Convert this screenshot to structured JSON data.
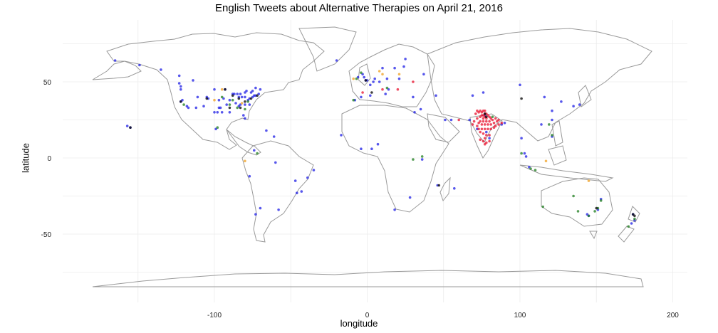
{
  "chart_data": {
    "type": "scatter",
    "title": "English Tweets about Alternative Therapies on April 21, 2016",
    "xlabel": "longitude",
    "ylabel": "latitude",
    "xlim": [
      -180,
      200
    ],
    "ylim": [
      -90,
      85
    ],
    "x_ticks": [
      -100,
      0,
      100,
      200
    ],
    "y_ticks": [
      -50,
      0,
      50
    ],
    "x_tick_labels": [
      "-100",
      "0",
      "100",
      "200"
    ],
    "y_tick_labels": [
      "-50",
      "0",
      "50"
    ],
    "grid": true,
    "series": [
      {
        "color": "#1f1fe6",
        "points": [
          [
            -122,
            47
          ],
          [
            -122,
            45
          ],
          [
            -122,
            37
          ],
          [
            -121,
            38
          ],
          [
            -118,
            34
          ],
          [
            -117,
            33
          ],
          [
            -112,
            33
          ],
          [
            -111,
            40
          ],
          [
            -105,
            40
          ],
          [
            -104,
            39
          ],
          [
            -97,
            33
          ],
          [
            -96,
            33
          ],
          [
            -95,
            30
          ],
          [
            -98,
            30
          ],
          [
            -90,
            30
          ],
          [
            -90,
            38
          ],
          [
            -87,
            42
          ],
          [
            -88,
            42
          ],
          [
            -84,
            34
          ],
          [
            -83,
            42
          ],
          [
            -82,
            40
          ],
          [
            -81,
            28
          ],
          [
            -80,
            26
          ],
          [
            -80,
            35
          ],
          [
            -80,
            40
          ],
          [
            -77,
            39
          ],
          [
            -75,
            40
          ],
          [
            -74,
            41
          ],
          [
            -73,
            41
          ],
          [
            -71,
            42
          ],
          [
            -79,
            44
          ],
          [
            -76,
            43
          ],
          [
            -73,
            46
          ],
          [
            -93,
            45
          ],
          [
            -94,
            39
          ],
          [
            -86,
            36
          ],
          [
            -85,
            42
          ],
          [
            -84,
            40
          ],
          [
            -77,
            35
          ],
          [
            -114,
            51
          ],
          [
            -123,
            49
          ],
          [
            -66,
            18
          ],
          [
            -157,
            21
          ],
          [
            -155,
            20
          ],
          [
            -99,
            19
          ],
          [
            -74,
            5
          ],
          [
            -77,
            -12
          ],
          [
            -70,
            -33
          ],
          [
            -58,
            -34
          ],
          [
            -46,
            -23
          ],
          [
            -43,
            -22
          ],
          [
            -123,
            54
          ],
          [
            -107,
            34
          ],
          [
            -100,
            30
          ],
          [
            -80,
            43
          ],
          [
            -83,
            35
          ],
          [
            -78,
            38
          ],
          [
            -75,
            44
          ],
          [
            -70,
            45
          ],
          [
            -100,
            45
          ],
          [
            -97,
            38
          ],
          [
            -92,
            35
          ],
          [
            -2,
            53
          ],
          [
            -1,
            51
          ],
          [
            0,
            51
          ],
          [
            -3,
            55
          ],
          [
            -6,
            53
          ],
          [
            2,
            48
          ],
          [
            4,
            50
          ],
          [
            5,
            52
          ],
          [
            8,
            50
          ],
          [
            13,
            52
          ],
          [
            10,
            59
          ],
          [
            18,
            59
          ],
          [
            24,
            60
          ],
          [
            21,
            52
          ],
          [
            37,
            55
          ],
          [
            12,
            42
          ],
          [
            14,
            45
          ],
          [
            2,
            41
          ],
          [
            -4,
            40
          ],
          [
            -8,
            38
          ],
          [
            30,
            40
          ],
          [
            35,
            32
          ],
          [
            31,
            30
          ],
          [
            55,
            25
          ],
          [
            51,
            25
          ],
          [
            67,
            25
          ],
          [
            72,
            19
          ],
          [
            77,
            28
          ],
          [
            80,
            13
          ],
          [
            78,
            17
          ],
          [
            88,
            22
          ],
          [
            90,
            23
          ],
          [
            101,
            13
          ],
          [
            104,
            1
          ],
          [
            103,
            3
          ],
          [
            106,
            -6
          ],
          [
            121,
            14
          ],
          [
            121,
            25
          ],
          [
            114,
            22
          ],
          [
            116,
            40
          ],
          [
            121,
            31
          ],
          [
            127,
            37
          ],
          [
            139,
            35
          ],
          [
            135,
            34
          ],
          [
            151,
            -34
          ],
          [
            145,
            -38
          ],
          [
            153,
            -27
          ],
          [
            144,
            -37
          ],
          [
            174,
            -37
          ],
          [
            175,
            -41
          ],
          [
            173,
            -43
          ],
          [
            28,
            -26
          ],
          [
            18,
            -34
          ],
          [
            36,
            -1
          ],
          [
            3,
            6
          ],
          [
            7,
            9
          ],
          [
            -17,
            15
          ],
          [
            -4,
            6
          ],
          [
            46,
            -18
          ],
          [
            57,
            -20
          ],
          [
            -61,
            14
          ],
          [
            -73,
            -37
          ],
          [
            -47,
            -15
          ],
          [
            -39,
            -13
          ],
          [
            -35,
            -8
          ],
          [
            -60,
            -3
          ],
          [
            -20,
            64
          ],
          [
            25,
            65
          ],
          [
            45,
            41
          ],
          [
            69,
            41
          ],
          [
            76,
            43
          ],
          [
            100,
            48
          ],
          [
            -135,
            58
          ],
          [
            -149,
            61
          ],
          [
            -165,
            64
          ]
        ]
      },
      {
        "color": "#e8112d",
        "points": [
          [
            72,
            26
          ],
          [
            74,
            27
          ],
          [
            75,
            28
          ],
          [
            76,
            28
          ],
          [
            77,
            29
          ],
          [
            78,
            29
          ],
          [
            79,
            28
          ],
          [
            80,
            27
          ],
          [
            81,
            26
          ],
          [
            77,
            27
          ],
          [
            78,
            26
          ],
          [
            76,
            26
          ],
          [
            74,
            24
          ],
          [
            73,
            23
          ],
          [
            75,
            22
          ],
          [
            77,
            22
          ],
          [
            79,
            22
          ],
          [
            81,
            22
          ],
          [
            83,
            23
          ],
          [
            85,
            24
          ],
          [
            86,
            25
          ],
          [
            84,
            26
          ],
          [
            82,
            25
          ],
          [
            80,
            24
          ],
          [
            78,
            24
          ],
          [
            76,
            24
          ],
          [
            72,
            21
          ],
          [
            73,
            19
          ],
          [
            75,
            19
          ],
          [
            77,
            19
          ],
          [
            79,
            19
          ],
          [
            81,
            19
          ],
          [
            83,
            20
          ],
          [
            74,
            17
          ],
          [
            76,
            16
          ],
          [
            78,
            15
          ],
          [
            80,
            15
          ],
          [
            77,
            13
          ],
          [
            76,
            11
          ],
          [
            78,
            10
          ],
          [
            80,
            11
          ],
          [
            77,
            9
          ],
          [
            74,
            12
          ],
          [
            88,
            23
          ],
          [
            86,
            22
          ],
          [
            84,
            21
          ],
          [
            72,
            31
          ],
          [
            74,
            31
          ],
          [
            76,
            31
          ],
          [
            77,
            31
          ],
          [
            75,
            30
          ],
          [
            73,
            30
          ],
          [
            71,
            29
          ],
          [
            70,
            24
          ],
          [
            69,
            22
          ],
          [
            30,
            50
          ],
          [
            20,
            45
          ],
          [
            10,
            45
          ],
          [
            -3,
            43
          ],
          [
            60,
            25
          ]
        ]
      },
      {
        "color": "#1e7d1e",
        "points": [
          [
            -120,
            35
          ],
          [
            -90,
            35
          ],
          [
            -85,
            33
          ],
          [
            -95,
            40
          ],
          [
            -88,
            38
          ],
          [
            -78,
            37
          ],
          [
            -80,
            32
          ],
          [
            -98,
            20
          ],
          [
            -72,
            3
          ],
          [
            -7,
            52
          ],
          [
            -4,
            56
          ],
          [
            13,
            46
          ],
          [
            101,
            3
          ],
          [
            107,
            -7
          ],
          [
            110,
            -8
          ],
          [
            119,
            22
          ],
          [
            121,
            15
          ],
          [
            145,
            -38
          ],
          [
            151,
            -33
          ],
          [
            153,
            -28
          ],
          [
            149,
            -35
          ],
          [
            138,
            -35
          ],
          [
            115,
            -32
          ],
          [
            171,
            -45
          ],
          [
            175,
            -40
          ],
          [
            30,
            -1
          ],
          [
            36,
            1
          ],
          [
            -9,
            38
          ],
          [
            82,
            27
          ],
          [
            135,
            -25
          ]
        ]
      },
      {
        "color": "#000000",
        "points": [
          [
            -93,
            45
          ],
          [
            -84,
            39
          ],
          [
            -80,
            37
          ],
          [
            -76,
            39
          ],
          [
            -72,
            41
          ],
          [
            -105,
            39
          ],
          [
            -83,
            33
          ],
          [
            -88,
            41
          ],
          [
            -90,
            33
          ],
          [
            -122,
            37
          ],
          [
            -1,
            51
          ],
          [
            77,
            29
          ],
          [
            78,
            27
          ],
          [
            101,
            39
          ],
          [
            174,
            -37
          ],
          [
            175,
            -38
          ],
          [
            150,
            -33
          ],
          [
            -155,
            20
          ],
          [
            3,
            43
          ],
          [
            47,
            -18
          ]
        ]
      },
      {
        "color": "#f0a020",
        "points": [
          [
            -95,
            45
          ],
          [
            -82,
            36
          ],
          [
            -100,
            38
          ],
          [
            10,
            55
          ],
          [
            21,
            55
          ],
          [
            8,
            57
          ],
          [
            -9,
            52
          ],
          [
            -80,
            -2
          ],
          [
            145,
            -15
          ],
          [
            117,
            -2
          ]
        ]
      }
    ]
  }
}
